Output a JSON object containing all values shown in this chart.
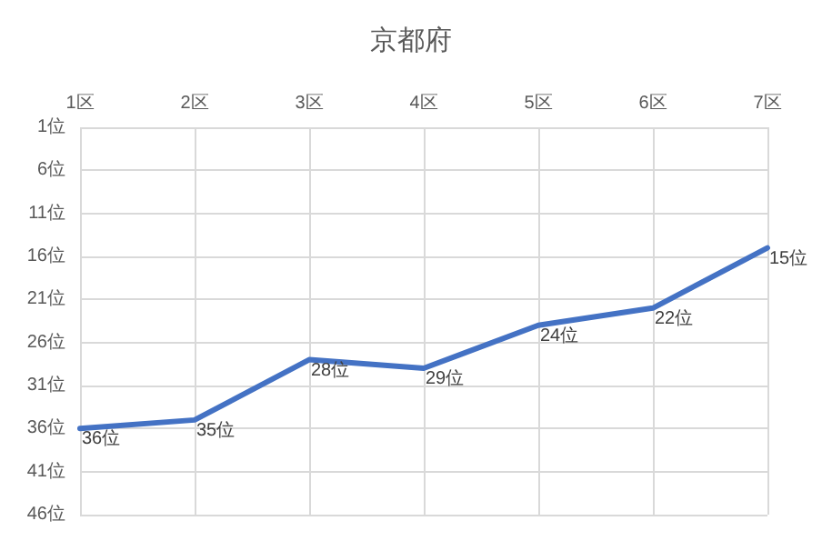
{
  "chart_data": {
    "type": "line",
    "title": "京都府",
    "categories": [
      "1区",
      "2区",
      "3区",
      "4区",
      "5区",
      "6区",
      "7区"
    ],
    "series": [
      {
        "color": "#4472c4",
        "values": [
          36,
          35,
          28,
          29,
          24,
          22,
          15
        ],
        "value_labels": [
          "36位",
          "35位",
          "28位",
          "29位",
          "24位",
          "22位",
          "15位"
        ]
      }
    ],
    "ylim": [
      46,
      1
    ],
    "yticks": [
      {
        "value": 1,
        "label": "1位"
      },
      {
        "value": 6,
        "label": "6位"
      },
      {
        "value": 11,
        "label": "11位"
      },
      {
        "value": 16,
        "label": "16位"
      },
      {
        "value": 21,
        "label": "21位"
      },
      {
        "value": 26,
        "label": "26位"
      },
      {
        "value": 31,
        "label": "31位"
      },
      {
        "value": 36,
        "label": "36位"
      },
      {
        "value": 41,
        "label": "41位"
      },
      {
        "value": 46,
        "label": "46位"
      }
    ],
    "grid": true,
    "marker": "none",
    "line_style": "solid"
  }
}
